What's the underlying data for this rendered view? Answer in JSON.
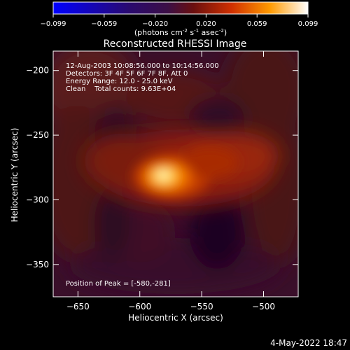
{
  "colorbar": {
    "ticks": [
      "-0.099",
      "-0.059",
      "-0.020",
      "0.020",
      "0.059",
      "0.099"
    ],
    "unit_label": "(photons cm",
    "unit_sup1": "-2",
    "unit_mid": " s",
    "unit_sup2": "-1",
    "unit_tail": " asec",
    "unit_sup3": "-2",
    "unit_close": ")"
  },
  "chart_data": {
    "type": "heatmap",
    "title": "Reconstructed RHESSI Image",
    "xlabel": "Heliocentric X (arcsec)",
    "ylabel": "Heliocentric Y (arcsec)",
    "xlim": [
      -670,
      -472
    ],
    "ylim": [
      -375,
      -185
    ],
    "x_ticks": [
      -650,
      -600,
      -550,
      -500
    ],
    "y_ticks": [
      -350,
      -300,
      -250,
      -200
    ],
    "value_range": [
      -0.099,
      0.099
    ],
    "colormap": "RHESSI red-temperature",
    "peak_position": [
      -580,
      -281
    ],
    "annotations": [
      "12-Aug-2003 10:08:56.000 to 10:14:56.000",
      "Detectors: 3F 4F 5F 6F 7F 8F, Att 0",
      "Energy Range: 12.0 - 25.0 keV",
      "Clean    Total counts: 9.63E+04",
      "Position of Peak = [-580,-281]"
    ]
  },
  "footer": {
    "timestamp": "4-May-2022 18:47"
  }
}
